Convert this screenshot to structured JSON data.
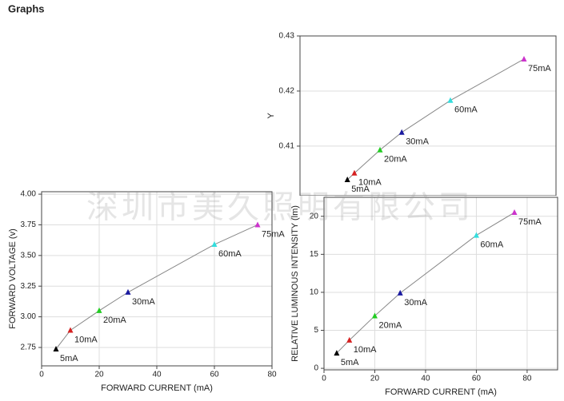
{
  "heading": "Graphs",
  "watermark": "深圳市美久照明有限公司",
  "chart_data": [
    {
      "type": "scatter",
      "ylabel": "Y",
      "x": [
        0.3074,
        0.3085,
        0.3125,
        0.3159,
        0.3235,
        0.335
      ],
      "values": [
        0.4039,
        0.4051,
        0.4093,
        0.4125,
        0.4183,
        0.4258
      ],
      "point_labels": [
        "5mA",
        "10mA",
        "20mA",
        "30mA",
        "60mA",
        "75mA"
      ],
      "colors": [
        "#000000",
        "#d62020",
        "#22cc22",
        "#1a1aa0",
        "#33dddd",
        "#cc33cc"
      ],
      "line_color": "#888888",
      "xlim": [
        0.3,
        0.34
      ],
      "ylim": [
        0.401,
        0.43
      ],
      "yticks": [
        0.41,
        0.42,
        0.43
      ],
      "grid": true
    },
    {
      "type": "scatter",
      "xlabel": "FORWARD CURRENT (mA)",
      "ylabel": "FORWARD VOLTAGE (v)",
      "x": [
        5,
        10,
        20,
        30,
        60,
        75
      ],
      "values": [
        2.737,
        2.89,
        3.05,
        3.2,
        3.59,
        3.75
      ],
      "point_labels": [
        "5mA",
        "10mA",
        "20mA",
        "30mA",
        "60mA",
        "75mA"
      ],
      "colors": [
        "#000000",
        "#d62020",
        "#22cc22",
        "#1a1aa0",
        "#33dddd",
        "#cc33cc"
      ],
      "line_color": "#888888",
      "xlim": [
        0,
        80
      ],
      "xticks": [
        0,
        20,
        40,
        60,
        80
      ],
      "ylim": [
        2.6,
        4.02
      ],
      "yticks": [
        2.75,
        {
          "value": 3,
          "label": "3.00"
        },
        3.25,
        {
          "value": 3.5,
          "label": "3.50"
        },
        3.75,
        {
          "value": 4,
          "label": "4.00"
        }
      ],
      "grid": true
    },
    {
      "type": "scatter",
      "xlabel": "FORWARD CURRENT (mA)",
      "ylabel": "RELATIVE LUMINOUS  INTENSITY (lm)",
      "x": [
        5,
        10,
        20,
        30,
        60,
        75
      ],
      "values": [
        2.0,
        3.7,
        6.9,
        9.9,
        17.5,
        20.5
      ],
      "point_labels": [
        "5mA",
        "10mA",
        "20mA",
        "30mA",
        "60mA",
        "75mA"
      ],
      "colors": [
        "#000000",
        "#d62020",
        "#22cc22",
        "#1a1aa0",
        "#33dddd",
        "#cc33cc"
      ],
      "line_color": "#888888",
      "xlim": [
        0,
        92
      ],
      "xticks": [
        0,
        20,
        40,
        60,
        80
      ],
      "ylim": [
        -0.2,
        22.5
      ],
      "yticks": [
        0,
        5,
        10,
        15,
        20
      ],
      "grid": true
    }
  ]
}
